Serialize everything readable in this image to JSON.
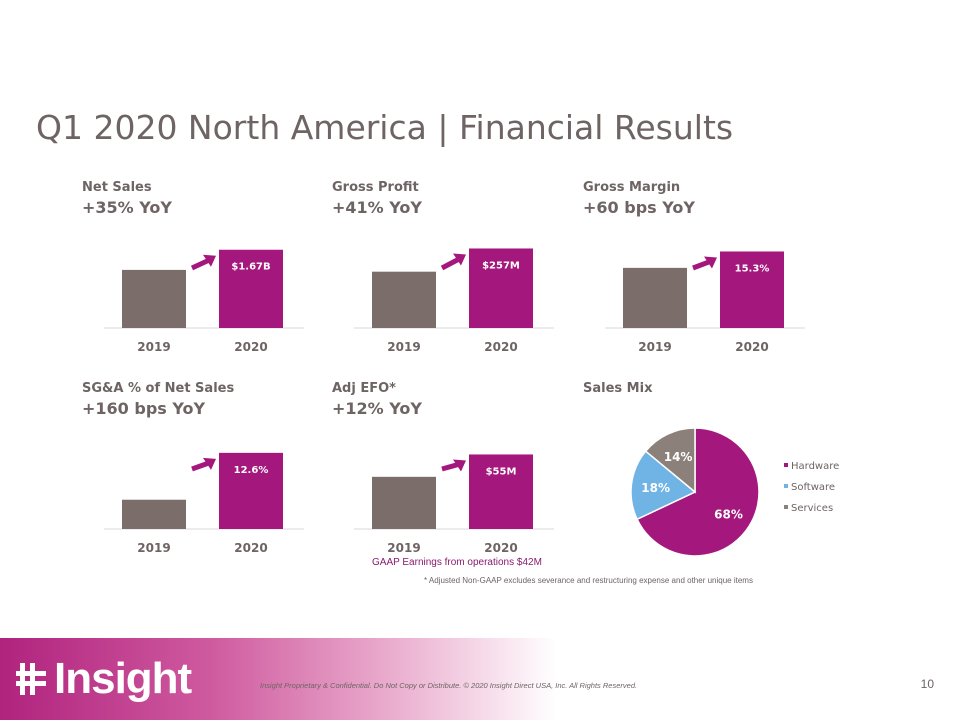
{
  "slide": {
    "title": "Q1 2020 North America | Financial Results",
    "page_number": "10",
    "legal": "Insight Proprietary & Confidential. Do Not Copy or Distribute. © 2020 Insight Direct USA, Inc. All Rights Reserved.",
    "logo_text": "Insight",
    "gaap_note": "GAAP Earnings from operations $42M",
    "adj_note": "* Adjusted Non-GAAP excludes severance and restructuring  expense and other unique items"
  },
  "colors": {
    "prior_year": "#7b6e6a",
    "current_year": "#a4187e",
    "arrow": "#a4187e",
    "hardware": "#a4187e",
    "software": "#6fb4e4",
    "services": "#8b807a"
  },
  "chart_data": [
    {
      "type": "bar",
      "title": "Net Sales",
      "subtitle": "+35% YoY",
      "categories": [
        "2019",
        "2020"
      ],
      "values": [
        1.24,
        1.67
      ],
      "data_labels": [
        "",
        "$1.67B"
      ],
      "unit": "$B",
      "ylim": [
        0,
        1.75
      ],
      "grid": false
    },
    {
      "type": "bar",
      "title": "Gross Profit",
      "subtitle": "+41% YoY",
      "categories": [
        "2019",
        "2020"
      ],
      "values": [
        182,
        257
      ],
      "data_labels": [
        "",
        "$257M"
      ],
      "unit": "$M",
      "ylim": [
        0,
        265
      ],
      "grid": false
    },
    {
      "type": "bar",
      "title": "Gross Margin",
      "subtitle": "+60 bps YoY",
      "categories": [
        "2019",
        "2020"
      ],
      "values": [
        14.7,
        15.3
      ],
      "data_labels": [
        "",
        "15.3%"
      ],
      "unit": "%",
      "ylim": [
        12.5,
        15.5
      ],
      "grid": false
    },
    {
      "type": "bar",
      "title": "SG&A % of Net Sales",
      "subtitle": "+160 bps YoY",
      "categories": [
        "2019",
        "2020"
      ],
      "values": [
        11.0,
        12.6
      ],
      "data_labels": [
        "",
        "12.6%"
      ],
      "unit": "%",
      "ylim": [
        10.0,
        12.8
      ],
      "grid": false
    },
    {
      "type": "bar",
      "title": "Adj EFO*",
      "subtitle": "+12% YoY",
      "categories": [
        "2019",
        "2020"
      ],
      "values": [
        49,
        55
      ],
      "data_labels": [
        "",
        "$55M"
      ],
      "unit": "$M",
      "ylim": [
        35,
        57
      ],
      "grid": false
    },
    {
      "type": "pie",
      "title": "Sales Mix",
      "categories": [
        "Hardware",
        "Software",
        "Services"
      ],
      "values": [
        68,
        18,
        14
      ],
      "data_labels": [
        "68%",
        "18%",
        "14%"
      ],
      "legend": "right"
    }
  ]
}
